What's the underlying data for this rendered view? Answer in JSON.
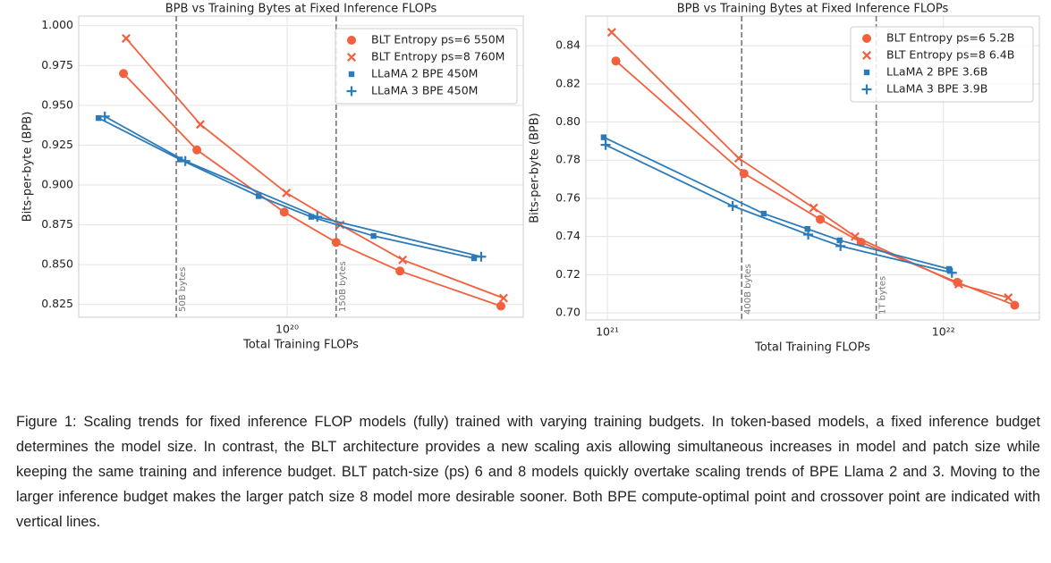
{
  "chart_data": [
    {
      "type": "line",
      "title": "BPB vs Training Bytes at Fixed Inference FLOPs",
      "x_label": "Total Training FLOPs",
      "y_label": "Bits-per-byte (BPB)",
      "xscale": "log",
      "xlim": [
        2.39e+19,
        5.06e+20
      ],
      "ylim": [
        0.817,
        1.006
      ],
      "xticks": [
        {
          "value": 1e+20,
          "label": "10²⁰"
        }
      ],
      "yticks": [
        {
          "value": 1.0,
          "label": "1.000"
        },
        0.975,
        {
          "value": 0.95,
          "label": "0.950"
        },
        0.925,
        {
          "value": 0.9,
          "label": "0.900"
        },
        0.875,
        {
          "value": 0.85,
          "label": "0.850"
        },
        0.825
      ],
      "grid": true,
      "legend": "upper right",
      "vlines": [
        {
          "x": 4.67e+19,
          "label": "50B bytes"
        },
        {
          "x": 1.4e+20,
          "label": "150B bytes"
        }
      ],
      "series": [
        {
          "name": "BLT Entropy ps=6 550M",
          "color": "#f2603e",
          "marker": "o",
          "x": [
            3.25e+19,
            5.38e+19,
            9.8e+19,
            1.4e+20,
            2.17e+20,
            4.34e+20
          ],
          "values": [
            0.97,
            0.922,
            0.883,
            0.864,
            0.846,
            0.824
          ]
        },
        {
          "name": "BLT Entropy ps=8 760M",
          "color": "#f2603e",
          "marker": "x",
          "x": [
            3.31e+19,
            5.51e+19,
            9.95e+19,
            1.44e+20,
            2.21e+20,
            4.42e+20
          ],
          "values": [
            0.992,
            0.938,
            0.895,
            0.875,
            0.853,
            0.829
          ]
        },
        {
          "name": "LLaMA 2 BPE 450M",
          "color": "#2b7bba",
          "marker": "s",
          "x": [
            2.74e+19,
            4.79e+19,
            8.22e+19,
            1.18e+20,
            1.81e+20,
            3.61e+20
          ],
          "values": [
            0.942,
            0.916,
            0.893,
            0.88,
            0.868,
            0.854
          ]
        },
        {
          "name": "LLaMA 3 BPE 450M",
          "color": "#2b7bba",
          "marker": "+",
          "x": [
            2.86e+19,
            4.97e+19,
            1.23e+20,
            3.79e+20
          ],
          "values": [
            0.943,
            0.915,
            0.88,
            0.855
          ]
        }
      ]
    },
    {
      "type": "line",
      "title": "BPB vs Training Bytes at Fixed Inference FLOPs",
      "x_label": "Total Training FLOPs",
      "y_label": "Bits-per-byte (BPB)",
      "xscale": "log",
      "xlim": [
        8.63e+20,
        1.93e+22
      ],
      "ylim": [
        0.6963,
        0.8555
      ],
      "xticks": [
        {
          "value": 1e+21,
          "label": "10²¹"
        },
        {
          "value": 1e+22,
          "label": "10²²"
        }
      ],
      "yticks": [
        {
          "value": 0.7,
          "label": "0.70"
        },
        0.72,
        0.74,
        0.76,
        0.78,
        {
          "value": 0.8,
          "label": "0.80"
        },
        0.82,
        0.84
      ],
      "grid": true,
      "legend": "upper right",
      "vlines": [
        {
          "x": 2.51e+21,
          "label": "400B bytes"
        },
        {
          "x": 6.31e+21,
          "label": "1T bytes"
        }
      ],
      "series": [
        {
          "name": "BLT Entropy ps=6 5.2B",
          "color": "#f2603e",
          "marker": "o",
          "x": [
            1.06e+21,
            2.55e+21,
            4.3e+21,
            5.69e+21,
            1.1e+22,
            1.63e+22
          ],
          "values": [
            0.832,
            0.773,
            0.749,
            0.737,
            0.716,
            0.704
          ]
        },
        {
          "name": "BLT Entropy ps=8 6.4B",
          "color": "#f2603e",
          "marker": "x",
          "x": [
            1.03e+21,
            2.46e+21,
            4.11e+21,
            5.46e+21,
            1.11e+22,
            1.56e+22
          ],
          "values": [
            0.847,
            0.781,
            0.755,
            0.74,
            0.715,
            0.708
          ]
        },
        {
          "name": "LLaMA 2 BPE 3.6B",
          "color": "#2b7bba",
          "marker": "s",
          "x": [
            9.75e+20,
            2.92e+21,
            3.94e+21,
            4.91e+21,
            1.04e+22
          ],
          "values": [
            0.792,
            0.752,
            0.744,
            0.738,
            0.723
          ]
        },
        {
          "name": "LLaMA 3 BPE 3.9B",
          "color": "#2b7bba",
          "marker": "+",
          "x": [
            9.88e+20,
            2.36e+21,
            3.96e+21,
            4.94e+21,
            1.06e+22
          ],
          "values": [
            0.788,
            0.756,
            0.741,
            0.735,
            0.721
          ]
        }
      ]
    }
  ],
  "caption": "Figure 1:  Scaling trends for fixed inference FLOP models (fully) trained with varying training budgets. In token-based models, a fixed inference budget determines the model size. In contrast, the BLT architecture provides a new scaling axis allowing simultaneous increases in model and patch size while keeping the same training and inference budget. BLT patch-size (ps) 6 and 8 models quickly overtake scaling trends of BPE Llama 2 and 3. Moving to the larger inference budget makes the larger patch size 8 model more desirable sooner. Both BPE compute-optimal point and crossover point are indicated with vertical lines."
}
